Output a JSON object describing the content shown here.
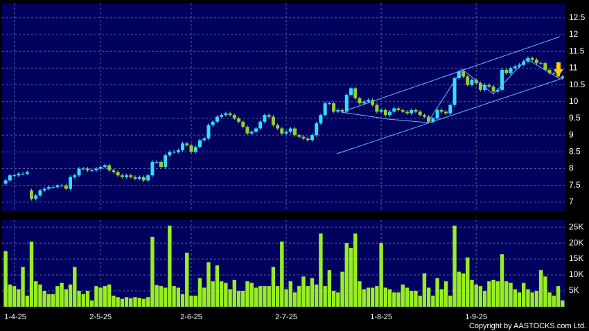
{
  "chart_data": [
    {
      "type": "candlestick",
      "up_color": "#33ddff",
      "down_color": "#99cc33",
      "ylim": [
        6.73,
        12.93
      ],
      "yticks": [
        7,
        7.5,
        8,
        8.5,
        9,
        9.5,
        10,
        10.5,
        11,
        11.5,
        12,
        12.5
      ],
      "grid": true,
      "categories": [
        null,
        null,
        "1-4-25",
        null,
        null,
        null,
        null,
        null,
        null,
        null,
        null,
        null,
        null,
        null,
        null,
        null,
        null,
        null,
        null,
        null,
        null,
        null,
        "2-5-25",
        null,
        null,
        null,
        null,
        null,
        null,
        null,
        null,
        null,
        null,
        null,
        null,
        null,
        null,
        null,
        null,
        null,
        null,
        null,
        null,
        "2-6-25",
        null,
        null,
        null,
        null,
        null,
        null,
        null,
        null,
        null,
        null,
        null,
        null,
        null,
        null,
        null,
        null,
        null,
        null,
        null,
        null,
        null,
        "2-7-25",
        null,
        null,
        null,
        null,
        null,
        null,
        null,
        null,
        null,
        null,
        null,
        null,
        null,
        null,
        null,
        null,
        null,
        null,
        null,
        null,
        null,
        "1-8-25",
        null,
        null,
        null,
        null,
        null,
        null,
        null,
        null,
        null,
        null,
        null,
        null,
        null,
        null,
        null,
        null,
        null,
        null,
        null,
        null,
        null,
        "1-9-25",
        null,
        null,
        null,
        null,
        null,
        null,
        null,
        null,
        null,
        null,
        null,
        null,
        null,
        null,
        null,
        null,
        null,
        null,
        null,
        null
      ],
      "open": [
        7.55,
        7.65,
        7.8,
        7.8,
        7.85,
        7.85,
        7.35,
        7.1,
        7.2,
        7.35,
        7.4,
        7.45,
        7.45,
        7.5,
        7.5,
        7.4,
        7.75,
        7.8,
        8.0,
        8.0,
        7.95,
        7.95,
        8.0,
        8.05,
        8.1,
        7.95,
        7.9,
        7.8,
        7.75,
        7.8,
        7.75,
        7.7,
        7.75,
        7.65,
        7.8,
        8.2,
        8.2,
        8.05,
        8.4,
        8.5,
        8.5,
        8.55,
        8.75,
        8.7,
        8.5,
        8.65,
        8.85,
        8.9,
        9.3,
        9.4,
        9.55,
        9.6,
        9.65,
        9.6,
        9.5,
        9.4,
        9.25,
        9.05,
        9.1,
        9.2,
        9.4,
        9.6,
        9.55,
        9.3,
        9.2,
        9.05,
        9.1,
        9.2,
        9.0,
        8.95,
        8.9,
        8.85,
        9.0,
        9.35,
        9.6,
        9.95,
        9.95,
        9.7,
        9.75,
        9.7,
        10.2,
        10.4,
        10.1,
        9.95,
        10.0,
        10.05,
        9.9,
        9.7,
        9.75,
        9.6,
        9.7,
        9.8,
        9.75,
        9.7,
        9.65,
        9.75,
        9.7,
        9.6,
        9.55,
        9.4,
        9.5,
        9.75,
        9.7,
        9.65,
        9.9,
        10.7,
        10.9,
        10.75,
        10.5,
        10.65,
        10.55,
        10.35,
        10.5,
        10.45,
        10.3,
        10.35,
        10.95,
        10.85,
        11.0,
        11.05,
        11.1,
        11.2,
        11.3,
        11.25,
        11.15,
        11.15,
        10.95,
        10.85,
        10.85,
        10.75
      ],
      "high": [
        7.7,
        7.85,
        7.85,
        7.9,
        7.9,
        7.95,
        7.4,
        7.25,
        7.4,
        7.45,
        7.5,
        7.5,
        7.55,
        7.55,
        7.55,
        7.8,
        7.85,
        8.05,
        8.05,
        8.05,
        8.0,
        8.05,
        8.1,
        8.15,
        8.15,
        8.0,
        7.95,
        7.85,
        7.85,
        7.85,
        7.8,
        7.8,
        7.8,
        7.85,
        8.25,
        8.25,
        8.25,
        8.45,
        8.55,
        8.55,
        8.6,
        8.8,
        8.8,
        8.75,
        8.7,
        8.9,
        8.95,
        9.35,
        9.45,
        9.6,
        9.65,
        9.7,
        9.7,
        9.65,
        9.55,
        9.45,
        9.3,
        9.15,
        9.25,
        9.45,
        9.65,
        9.65,
        9.6,
        9.35,
        9.25,
        9.15,
        9.25,
        9.25,
        9.05,
        9.0,
        8.95,
        9.05,
        9.4,
        9.65,
        10.0,
        10.0,
        10.0,
        9.8,
        9.8,
        10.25,
        10.45,
        10.45,
        10.15,
        10.05,
        10.1,
        10.1,
        9.95,
        9.8,
        9.8,
        9.75,
        9.85,
        9.85,
        9.8,
        9.75,
        9.8,
        9.8,
        9.75,
        9.65,
        9.6,
        9.55,
        9.8,
        9.8,
        9.75,
        9.95,
        10.75,
        10.95,
        10.95,
        10.8,
        10.7,
        10.7,
        10.6,
        10.55,
        10.55,
        10.5,
        10.4,
        11.0,
        11.0,
        11.05,
        11.1,
        11.15,
        11.25,
        11.35,
        11.35,
        11.3,
        11.2,
        11.2,
        11.0,
        10.9,
        10.9,
        10.8
      ],
      "low": [
        7.5,
        7.6,
        7.75,
        7.75,
        7.8,
        7.8,
        7.05,
        7.05,
        7.15,
        7.3,
        7.35,
        7.4,
        7.4,
        7.45,
        7.35,
        7.35,
        7.7,
        7.75,
        7.95,
        7.9,
        7.9,
        7.9,
        7.95,
        8.0,
        7.9,
        7.85,
        7.75,
        7.7,
        7.7,
        7.7,
        7.65,
        7.65,
        7.6,
        7.6,
        7.75,
        8.15,
        8.0,
        8.0,
        8.35,
        8.45,
        8.45,
        8.5,
        8.65,
        8.45,
        8.45,
        8.6,
        8.8,
        8.85,
        9.25,
        9.35,
        9.5,
        9.55,
        9.55,
        9.45,
        9.35,
        9.2,
        9.0,
        9.0,
        9.05,
        9.15,
        9.35,
        9.5,
        9.25,
        9.15,
        9.0,
        9.0,
        9.05,
        8.95,
        8.9,
        8.85,
        8.8,
        8.8,
        8.95,
        9.3,
        9.55,
        9.9,
        9.65,
        9.65,
        9.65,
        9.65,
        10.15,
        10.05,
        9.9,
        9.9,
        9.95,
        9.85,
        9.65,
        9.65,
        9.55,
        9.55,
        9.65,
        9.7,
        9.65,
        9.6,
        9.6,
        9.65,
        9.55,
        9.5,
        9.35,
        9.35,
        9.45,
        9.65,
        9.6,
        9.6,
        9.85,
        10.65,
        10.7,
        10.45,
        10.45,
        10.5,
        10.3,
        10.3,
        10.4,
        10.25,
        10.25,
        10.3,
        10.8,
        10.8,
        10.95,
        11.0,
        11.05,
        11.15,
        11.2,
        11.1,
        11.1,
        10.9,
        10.8,
        10.8,
        10.7,
        10.65
      ],
      "close": [
        7.65,
        7.8,
        7.8,
        7.85,
        7.85,
        7.9,
        7.1,
        7.2,
        7.35,
        7.4,
        7.45,
        7.45,
        7.5,
        7.5,
        7.4,
        7.75,
        7.8,
        8.0,
        8.0,
        7.95,
        7.95,
        8.0,
        8.05,
        8.1,
        7.95,
        7.9,
        7.8,
        7.75,
        7.8,
        7.75,
        7.7,
        7.75,
        7.65,
        7.8,
        8.2,
        8.2,
        8.05,
        8.4,
        8.5,
        8.5,
        8.55,
        8.75,
        8.7,
        8.5,
        8.65,
        8.85,
        8.9,
        9.3,
        9.4,
        9.55,
        9.6,
        9.65,
        9.6,
        9.5,
        9.4,
        9.25,
        9.05,
        9.1,
        9.2,
        9.4,
        9.6,
        9.55,
        9.3,
        9.2,
        9.05,
        9.1,
        9.2,
        9.0,
        8.95,
        8.9,
        8.85,
        9.0,
        9.35,
        9.6,
        9.95,
        9.95,
        9.7,
        9.75,
        9.7,
        10.2,
        10.4,
        10.1,
        9.95,
        10.0,
        10.05,
        9.9,
        9.7,
        9.75,
        9.6,
        9.7,
        9.8,
        9.75,
        9.7,
        9.65,
        9.75,
        9.7,
        9.6,
        9.55,
        9.4,
        9.5,
        9.75,
        9.7,
        9.65,
        9.9,
        10.7,
        10.9,
        10.75,
        10.5,
        10.65,
        10.55,
        10.35,
        10.5,
        10.45,
        10.3,
        10.35,
        10.95,
        10.85,
        11.0,
        11.05,
        11.1,
        11.2,
        11.3,
        11.25,
        11.15,
        11.15,
        10.95,
        10.85,
        10.85,
        10.75,
        10.7
      ]
    },
    {
      "type": "bar",
      "color": "#99ee22",
      "ylim": [
        0,
        27200
      ],
      "grid": true,
      "yticks": [
        {
          "value": 5000,
          "label": "5K"
        },
        {
          "value": 10000,
          "label": "10K"
        },
        {
          "value": 15000,
          "label": "15K"
        },
        {
          "value": 20000,
          "label": "20K"
        },
        {
          "value": 25000,
          "label": "25K"
        }
      ],
      "values": [
        17500,
        7000,
        6500,
        5500,
        12500,
        3500,
        20500,
        8000,
        7000,
        5000,
        4000,
        4000,
        6500,
        7500,
        5500,
        7000,
        12500,
        5000,
        4000,
        5000,
        2000,
        6500,
        6000,
        6500,
        7000,
        3500,
        3000,
        2500,
        3000,
        2700,
        3000,
        2800,
        2500,
        3000,
        22000,
        6800,
        6500,
        6000,
        25500,
        6500,
        6000,
        4000,
        17000,
        3500,
        3500,
        9000,
        6000,
        14000,
        8000,
        13000,
        8000,
        7500,
        5500,
        8500,
        5000,
        5000,
        8000,
        7500,
        6000,
        6500,
        6500,
        6500,
        12500,
        6500,
        20500,
        5500,
        8000,
        4500,
        6500,
        9500,
        6500,
        9000,
        7000,
        23000,
        6500,
        11500,
        5000,
        4500,
        11000,
        20000,
        18500,
        23000,
        8000,
        5500,
        6000,
        6000,
        6500,
        20000,
        6000,
        5500,
        4500,
        4500,
        7000,
        6000,
        5000,
        5000,
        3500,
        10500,
        6000,
        3500,
        9000,
        5500,
        8000,
        3500,
        25500,
        11000,
        10500,
        15500,
        8500,
        7000,
        6500,
        5000,
        8000,
        8500,
        8000,
        16500,
        8000,
        7500,
        5500,
        4500,
        7500,
        5500,
        4500,
        5000,
        11500,
        9500,
        4500,
        3500,
        6500,
        2000
      ]
    }
  ],
  "copyright": "Copyright by AASTOCKS.com Ltd."
}
